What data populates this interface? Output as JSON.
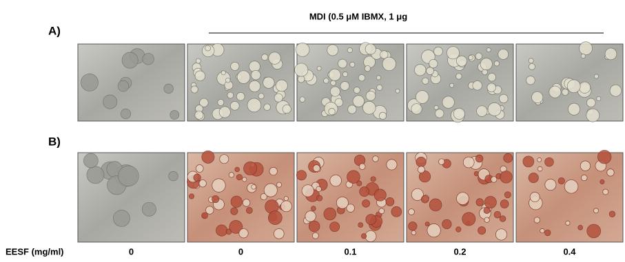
{
  "figure": {
    "title": "MDI (0.5 μM IBMX, 1 μg",
    "panels": [
      {
        "label": "A)"
      },
      {
        "label": "B)"
      }
    ],
    "x_label": "EESF (mg/ml)",
    "conditions": [
      "0",
      "0",
      "0.1",
      "0.2",
      "0.4"
    ]
  }
}
